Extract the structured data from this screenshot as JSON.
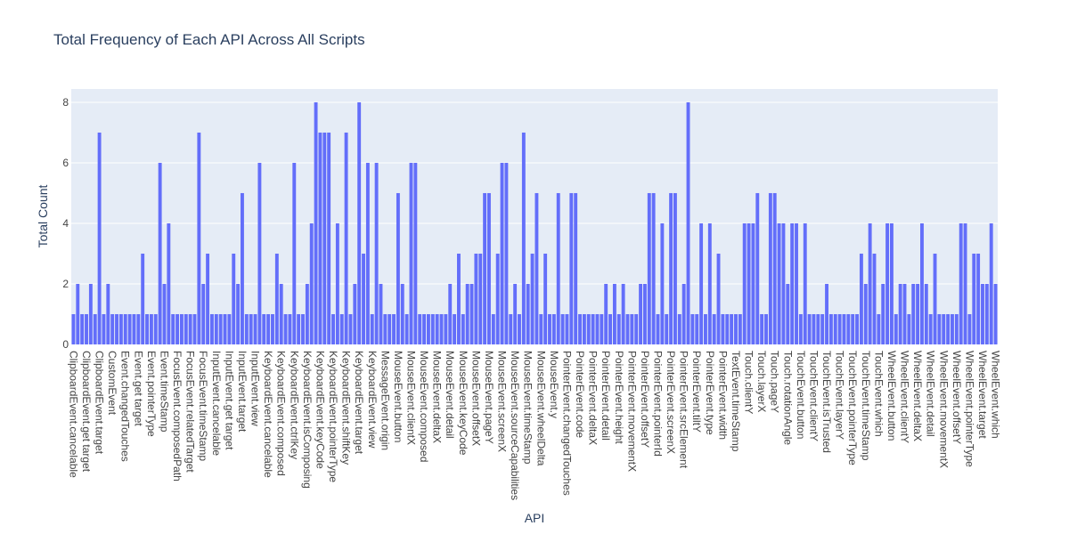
{
  "chart_data": {
    "type": "bar",
    "title": "Total Frequency of Each API Across All Scripts",
    "x_label": "API",
    "y_label": "Total Count",
    "color": "#636efa",
    "ylim": [
      0,
      8.44
    ],
    "yticks": [
      0,
      2,
      4,
      6,
      8
    ],
    "grid": true,
    "categories": [
      "ClipboardEvent.cancelable",
      null,
      null,
      "ClipboardEvent.get target",
      null,
      null,
      "ClipboardEvent.target",
      null,
      null,
      "CustomEvent",
      null,
      null,
      "Event.changedTouches",
      null,
      null,
      "Event.get target",
      null,
      null,
      "Event.pointerType",
      null,
      null,
      "Event.timeStamp",
      null,
      null,
      "FocusEvent.composedPath",
      null,
      null,
      "FocusEvent.relatedTarget",
      null,
      null,
      "FocusEvent.timeStamp",
      null,
      null,
      "InputEvent.cancelable",
      null,
      null,
      "InputEvent.get target",
      null,
      null,
      "InputEvent.target",
      null,
      null,
      "InputEvent.view",
      null,
      null,
      "KeyboardEvent.cancelable",
      null,
      null,
      "KeyboardEvent.composed",
      null,
      null,
      "KeyboardEvent.ctrlKey",
      null,
      null,
      "KeyboardEvent.isComposing",
      null,
      null,
      "KeyboardEvent.keyCode",
      null,
      null,
      "KeyboardEvent.pointerType",
      null,
      null,
      "KeyboardEvent.shiftKey",
      null,
      null,
      "KeyboardEvent.target",
      null,
      null,
      "KeyboardEvent.view",
      null,
      null,
      "MessageEvent.origin",
      null,
      null,
      "MouseEvent.button",
      null,
      null,
      "MouseEvent.clientX",
      null,
      null,
      "MouseEvent.composed",
      null,
      null,
      "MouseEvent.deltaX",
      null,
      null,
      "MouseEvent.detail",
      null,
      null,
      "MouseEvent.keyCode",
      null,
      null,
      "MouseEvent.offsetX",
      null,
      null,
      "MouseEvent.pageY",
      null,
      null,
      "MouseEvent.screenX",
      null,
      null,
      "MouseEvent.sourceCapabilities",
      null,
      null,
      "MouseEvent.timeStamp",
      null,
      null,
      "MouseEvent.wheelDelta",
      null,
      null,
      "MouseEvent.y",
      null,
      null,
      "PointerEvent.changedTouches",
      null,
      null,
      "PointerEvent.code",
      null,
      null,
      "PointerEvent.deltaX",
      null,
      null,
      "PointerEvent.detail",
      null,
      null,
      "PointerEvent.height",
      null,
      null,
      "PointerEvent.movementX",
      null,
      null,
      "PointerEvent.offsetY",
      null,
      null,
      "PointerEvent.pointerId",
      null,
      null,
      "PointerEvent.screenX",
      null,
      null,
      "PointerEvent.srcElement",
      null,
      null,
      "PointerEvent.tiltY",
      null,
      null,
      "PointerEvent.type",
      null,
      null,
      "PointerEvent.width",
      null,
      null,
      "TextEvent.timeStamp",
      null,
      null,
      "Touch.clientY",
      null,
      null,
      "Touch.layerX",
      null,
      null,
      "Touch.pageY",
      null,
      null,
      "Touch.rotationAngle",
      null,
      null,
      "TouchEvent.button",
      null,
      null,
      "TouchEvent.clientY",
      null,
      null,
      "TouchEvent.isTrusted",
      null,
      null,
      "TouchEvent.layerY",
      null,
      null,
      "TouchEvent.pointerType",
      null,
      null,
      "TouchEvent.timeStamp",
      null,
      null,
      "TouchEvent.which",
      null,
      null,
      "WheelEvent.button",
      null,
      null,
      "WheelEvent.clientY",
      null,
      null,
      "WheelEvent.deltaX",
      null,
      null,
      "WheelEvent.detail",
      null,
      null,
      "WheelEvent.movementX",
      null,
      null,
      "WheelEvent.offsetY",
      null,
      null,
      "WheelEvent.pointerType",
      null,
      null,
      "WheelEvent.target",
      null,
      null,
      "WheelEvent.which"
    ],
    "values": [
      1,
      2,
      1,
      1,
      2,
      1,
      7,
      1,
      2,
      1,
      1,
      1,
      1,
      1,
      1,
      1,
      3,
      1,
      1,
      1,
      6,
      2,
      4,
      1,
      1,
      1,
      1,
      1,
      1,
      7,
      2,
      3,
      1,
      1,
      1,
      1,
      1,
      3,
      2,
      5,
      1,
      1,
      1,
      6,
      1,
      1,
      1,
      3,
      2,
      1,
      1,
      6,
      1,
      1,
      2,
      4,
      8,
      7,
      7,
      7,
      1,
      4,
      1,
      7,
      1,
      2,
      8,
      3,
      6,
      1,
      6,
      2,
      1,
      1,
      1,
      5,
      2,
      1,
      6,
      6,
      1,
      1,
      1,
      1,
      1,
      1,
      1,
      2,
      1,
      3,
      1,
      2,
      2,
      3,
      3,
      5,
      5,
      1,
      3,
      6,
      6,
      1,
      2,
      1,
      7,
      2,
      3,
      5,
      1,
      3,
      1,
      1,
      5,
      1,
      1,
      5,
      5,
      1,
      1,
      1,
      1,
      1,
      1,
      2,
      1,
      2,
      1,
      2,
      1,
      1,
      1,
      2,
      2,
      5,
      5,
      1,
      4,
      1,
      5,
      5,
      1,
      2,
      8,
      1,
      1,
      4,
      1,
      4,
      1,
      3,
      1,
      1,
      1,
      1,
      1,
      4,
      4,
      4,
      5,
      1,
      1,
      5,
      5,
      4,
      4,
      2,
      4,
      4,
      1,
      4,
      1,
      1,
      1,
      1,
      2,
      1,
      1,
      1,
      1,
      1,
      1,
      1,
      3,
      2,
      4,
      3,
      1,
      2,
      4,
      4,
      1,
      2,
      2,
      1,
      2,
      2,
      4,
      2,
      1,
      3,
      1,
      1,
      1,
      1,
      1,
      4,
      4,
      1,
      3,
      3,
      2,
      2,
      4,
      2
    ]
  }
}
